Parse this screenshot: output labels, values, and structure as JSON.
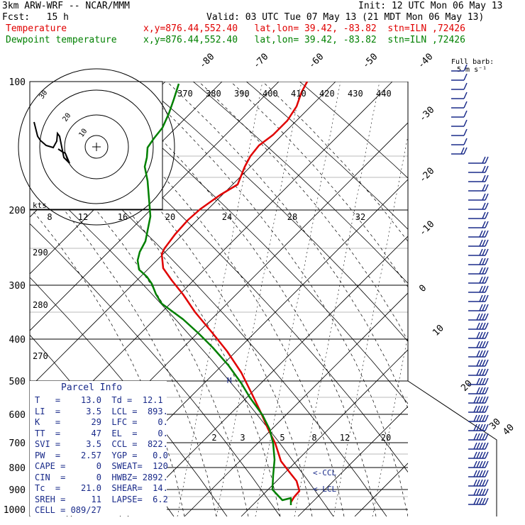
{
  "header": {
    "model": "3km ARW-WRF -- NCAR/MMM",
    "init": "Init: 12 UTC Mon 06 May 13",
    "fcst": "Fcst:   15 h",
    "valid": "Valid: 03 UTC Tue 07 May 13 (21 MDT Mon 06 May 13)",
    "temp_label": "Temperature",
    "temp_loc": "x,y=876.44,552.40   lat,lon= 39.42, -83.82  stn=ILN ,72426",
    "dew_label": "Dewpoint temperature",
    "dew_loc": "x,y=876.44,552.40   lat,lon= 39.42, -83.82  stn=ILN ,72426"
  },
  "barb_legend": {
    "line1": "Full barb:",
    "line2": "5 m s⁻¹"
  },
  "parcel_info": {
    "title": "Parcel Info",
    "rows": [
      "T   =    13.0  Td =  12.1",
      "LI  =     3.5  LCL =  893.",
      "K   =      29  LFC =    0.",
      "TT  =      47  EL  =    0.",
      "SVI =     3.5  CCL =  822.",
      "PW  =    2.57  YGP =   0.0",
      "CAPE =      0  SWEAT=  120",
      "CIN  =      0  HWBZ= 2892.",
      "Tc  =    21.0  SHEAR=  14.",
      "SREH =     11  LAPSE=  6.2",
      "CELL = 089/27"
    ]
  },
  "hodo": {
    "unit_label": "kts",
    "ring_labels": [
      "10",
      "20",
      "30"
    ]
  },
  "chart_data": {
    "type": "line",
    "title": "",
    "ylabel": "",
    "y_scale": "log (skew-T)",
    "pressure_ticks": [
      "100",
      "200",
      "300",
      "400",
      "500",
      "600",
      "700",
      "800",
      "900",
      "1000"
    ],
    "isotherm_labels": [
      "-80",
      "-70",
      "-60",
      "-50",
      "-40",
      "-30",
      "-20",
      "-10",
      "0",
      "10",
      "20",
      "30",
      "40"
    ],
    "theta_labels_top": [
      "370",
      "380",
      "390",
      "400",
      "410",
      "420",
      "430",
      "440"
    ],
    "theta_labels_left": [
      "290",
      "280",
      "270"
    ],
    "mixing_ratio_labels": [
      "8",
      "12",
      "16",
      "20",
      "24",
      "28",
      "32"
    ],
    "mixing_ratio_labels_low": [
      "2",
      "3",
      "5",
      "8",
      "12",
      "20"
    ],
    "annotations": [
      "<-CCL",
      "<-LCL",
      "M"
    ],
    "series": [
      {
        "name": "Temperature",
        "color": "#e00000",
        "points": [
          [
            433,
            115
          ],
          [
            425,
            130
          ],
          [
            418,
            150
          ],
          [
            405,
            170
          ],
          [
            385,
            190
          ],
          [
            365,
            205
          ],
          [
            353,
            220
          ],
          [
            345,
            235
          ],
          [
            335,
            260
          ],
          [
            310,
            275
          ],
          [
            282,
            295
          ],
          [
            265,
            310
          ],
          [
            247,
            330
          ],
          [
            232,
            350
          ],
          [
            228,
            358
          ],
          [
            230,
            378
          ],
          [
            242,
            395
          ],
          [
            258,
            415
          ],
          [
            275,
            440
          ],
          [
            300,
            470
          ],
          [
            320,
            495
          ],
          [
            340,
            525
          ],
          [
            355,
            555
          ],
          [
            367,
            580
          ],
          [
            378,
            605
          ],
          [
            388,
            625
          ],
          [
            396,
            650
          ],
          [
            410,
            668
          ],
          [
            418,
            678
          ],
          [
            422,
            692
          ],
          [
            415,
            700
          ],
          [
            410,
            708
          ]
        ]
      },
      {
        "name": "Dewpoint temperature",
        "color": "#008000",
        "points": [
          [
            252,
            118
          ],
          [
            245,
            140
          ],
          [
            238,
            160
          ],
          [
            229,
            180
          ],
          [
            217,
            195
          ],
          [
            208,
            208
          ],
          [
            207,
            222
          ],
          [
            204,
            235
          ],
          [
            208,
            255
          ],
          [
            210,
            280
          ],
          [
            212,
            305
          ],
          [
            208,
            325
          ],
          [
            205,
            340
          ],
          [
            197,
            355
          ],
          [
            194,
            367
          ],
          [
            196,
            380
          ],
          [
            207,
            390
          ],
          [
            214,
            400
          ],
          [
            220,
            415
          ],
          [
            228,
            428
          ],
          [
            258,
            450
          ],
          [
            280,
            470
          ],
          [
            300,
            490
          ],
          [
            322,
            515
          ],
          [
            340,
            540
          ],
          [
            352,
            560
          ],
          [
            370,
            585
          ],
          [
            380,
            605
          ],
          [
            385,
            625
          ],
          [
            387,
            648
          ],
          [
            385,
            670
          ],
          [
            384,
            690
          ],
          [
            398,
            705
          ],
          [
            410,
            702
          ],
          [
            410,
            712
          ]
        ]
      }
    ],
    "wind_barbs": "right column, speed increasing with height"
  }
}
